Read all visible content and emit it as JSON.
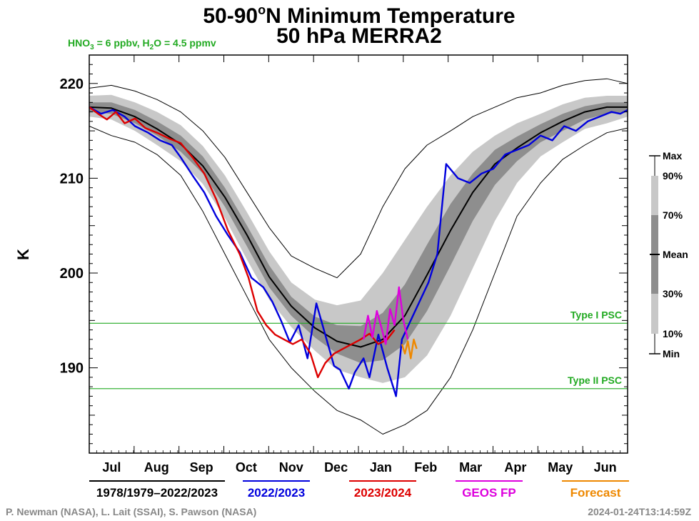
{
  "credits": "P. Newman (NASA), L. Lait (SSAI), S. Pawson (NASA)",
  "timestamp": "2024-01-24T13:14:59Z",
  "chart_data": {
    "type": "line",
    "title_main": "50-90",
    "title_degree": "o",
    "title_rest": "N Minimum Temperature",
    "subtitle": "50 hPa   MERRA2",
    "condition_parts": [
      "HNO",
      "3",
      " = 6 ppbv, H",
      "2",
      "O = 4.5 ppmv"
    ],
    "ylabel": "K",
    "xlabel": "",
    "ylim": [
      181,
      223
    ],
    "yticks": [
      190,
      200,
      210,
      220
    ],
    "x_months": [
      "Jul",
      "Aug",
      "Sep",
      "Oct",
      "Nov",
      "Dec",
      "Jan",
      "Feb",
      "Mar",
      "Apr",
      "May",
      "Jun"
    ],
    "x_days_range": [
      0,
      365
    ],
    "grid": false,
    "thresholds": [
      {
        "name": "Type I PSC",
        "value": 194.7,
        "color": "#22aa22"
      },
      {
        "name": "Type II PSC",
        "value": 187.8,
        "color": "#22aa22"
      }
    ],
    "legend_side": {
      "position": "right",
      "labels": [
        "Max",
        "90%",
        "70%",
        "Mean",
        "30%",
        "10%",
        "Min"
      ]
    },
    "legend_bottom": [
      {
        "label": "1978/1979–2022/2023",
        "color": "#000000"
      },
      {
        "label": "2022/2023",
        "color": "#0000dd"
      },
      {
        "label": "2023/2024",
        "color": "#dd0000"
      },
      {
        "label": "GEOS FP",
        "color": "#dd00dd"
      },
      {
        "label": "Forecast",
        "color": "#ee8800"
      }
    ],
    "climatology": {
      "x": [
        0,
        15,
        31,
        46,
        62,
        77,
        92,
        107,
        122,
        137,
        153,
        168,
        184,
        199,
        214,
        229,
        245,
        260,
        275,
        290,
        306,
        321,
        336,
        351,
        365
      ],
      "mean": [
        217.5,
        217.4,
        216.5,
        215.2,
        213.6,
        211.3,
        208.0,
        204.0,
        199.6,
        196.5,
        194.2,
        192.8,
        192.2,
        193.0,
        195.5,
        199.8,
        204.5,
        208.5,
        211.5,
        213.2,
        214.8,
        216.0,
        217.0,
        217.5,
        217.5
      ],
      "p30": [
        217.0,
        216.8,
        215.8,
        214.5,
        212.8,
        210.5,
        207.0,
        202.8,
        198.5,
        195.5,
        193.2,
        191.5,
        190.5,
        190.8,
        192.5,
        196.0,
        200.8,
        205.5,
        209.3,
        211.8,
        213.8,
        215.0,
        216.2,
        216.8,
        217.0
      ],
      "p70": [
        218.0,
        218.0,
        217.2,
        216.0,
        214.5,
        212.3,
        209.0,
        205.0,
        200.8,
        197.5,
        195.4,
        194.5,
        194.4,
        195.8,
        198.8,
        203.0,
        207.3,
        210.5,
        213.0,
        214.4,
        215.7,
        216.8,
        217.6,
        218.0,
        218.0
      ],
      "p10": [
        216.5,
        216.2,
        215.0,
        213.5,
        211.8,
        209.4,
        205.8,
        201.4,
        197.2,
        194.3,
        191.8,
        189.8,
        189.0,
        188.4,
        189.0,
        191.3,
        195.5,
        200.5,
        205.5,
        209.5,
        212.3,
        213.8,
        215.2,
        215.8,
        216.5
      ],
      "p90": [
        218.7,
        218.8,
        218.0,
        217.0,
        215.6,
        213.4,
        210.3,
        206.4,
        202.3,
        199.0,
        197.2,
        196.6,
        197.1,
        200.0,
        203.5,
        207.0,
        210.3,
        212.8,
        214.5,
        215.8,
        216.8,
        217.8,
        218.5,
        218.7,
        218.7
      ],
      "min": [
        215.5,
        214.5,
        213.8,
        212.5,
        210.3,
        206.5,
        202.0,
        197.5,
        193.0,
        190.0,
        187.5,
        185.5,
        184.5,
        183.0,
        184.0,
        185.5,
        189.0,
        194.0,
        200.0,
        206.0,
        209.5,
        212.0,
        213.5,
        214.8,
        215.3
      ],
      "max": [
        219.5,
        219.8,
        219.2,
        218.3,
        217.0,
        215.0,
        212.2,
        208.5,
        204.8,
        201.8,
        200.5,
        199.5,
        202.0,
        207.0,
        211.0,
        213.5,
        215.0,
        216.5,
        217.5,
        218.5,
        219.0,
        219.8,
        220.3,
        220.5,
        220.0
      ]
    },
    "series": [
      {
        "name": "2022/2023",
        "color": "#0000dd",
        "x": [
          0,
          8,
          16,
          24,
          31,
          40,
          48,
          56,
          62,
          70,
          78,
          86,
          94,
          102,
          110,
          118,
          124,
          130,
          136,
          142,
          148,
          154,
          160,
          166,
          170,
          176,
          180,
          186,
          190,
          196,
          202,
          208,
          212,
          218,
          224,
          230,
          236,
          242,
          250,
          258,
          266,
          274,
          282,
          290,
          298,
          306,
          314,
          322,
          330,
          338,
          346,
          354,
          360,
          365
        ],
        "y": [
          217.5,
          216.8,
          217.2,
          216.5,
          215.5,
          214.8,
          214.0,
          213.5,
          212.2,
          210.3,
          208.5,
          206.0,
          204.0,
          202.2,
          199.5,
          198.5,
          197.0,
          195.0,
          192.7,
          194.5,
          191.0,
          196.8,
          193.5,
          190.2,
          189.8,
          187.8,
          189.5,
          191.0,
          189.0,
          193.5,
          190.0,
          187.0,
          193.0,
          195.0,
          197.0,
          199.0,
          202.0,
          211.5,
          210.0,
          209.5,
          210.5,
          211.0,
          212.5,
          213.0,
          213.5,
          214.5,
          214.0,
          215.5,
          215.0,
          216.0,
          216.5,
          217.0,
          216.8,
          217.2
        ]
      },
      {
        "name": "2023/2024",
        "color": "#dd0000",
        "x": [
          0,
          6,
          12,
          18,
          24,
          31,
          38,
          46,
          54,
          62,
          70,
          78,
          86,
          94,
          102,
          108,
          114,
          120,
          126,
          132,
          138,
          144,
          150,
          155,
          160,
          166,
          172,
          178,
          184,
          190,
          196,
          202,
          207
        ],
        "y": [
          217.5,
          216.8,
          216.2,
          217.0,
          215.8,
          216.3,
          215.3,
          214.8,
          214.2,
          213.7,
          212.2,
          210.5,
          207.8,
          204.5,
          202.0,
          199.5,
          196.0,
          194.5,
          193.5,
          193.0,
          192.5,
          193.0,
          191.5,
          189.0,
          190.5,
          191.5,
          192.0,
          192.5,
          193.0,
          193.6,
          192.5,
          193.0,
          194.0
        ]
      },
      {
        "name": "GEOS FP",
        "color": "#dd00dd",
        "x": [
          186,
          189,
          192,
          195,
          198,
          201,
          204,
          207,
          210,
          213,
          216
        ],
        "y": [
          193.0,
          195.5,
          193.2,
          196.0,
          194.3,
          192.5,
          196.2,
          194.5,
          198.5,
          195.0,
          193.0
        ]
      },
      {
        "name": "Forecast",
        "color": "#ee8800",
        "x": [
          212,
          214,
          216,
          218,
          220,
          222
        ],
        "y": [
          192.5,
          191.5,
          192.8,
          191.0,
          193.0,
          192.0
        ]
      }
    ]
  }
}
